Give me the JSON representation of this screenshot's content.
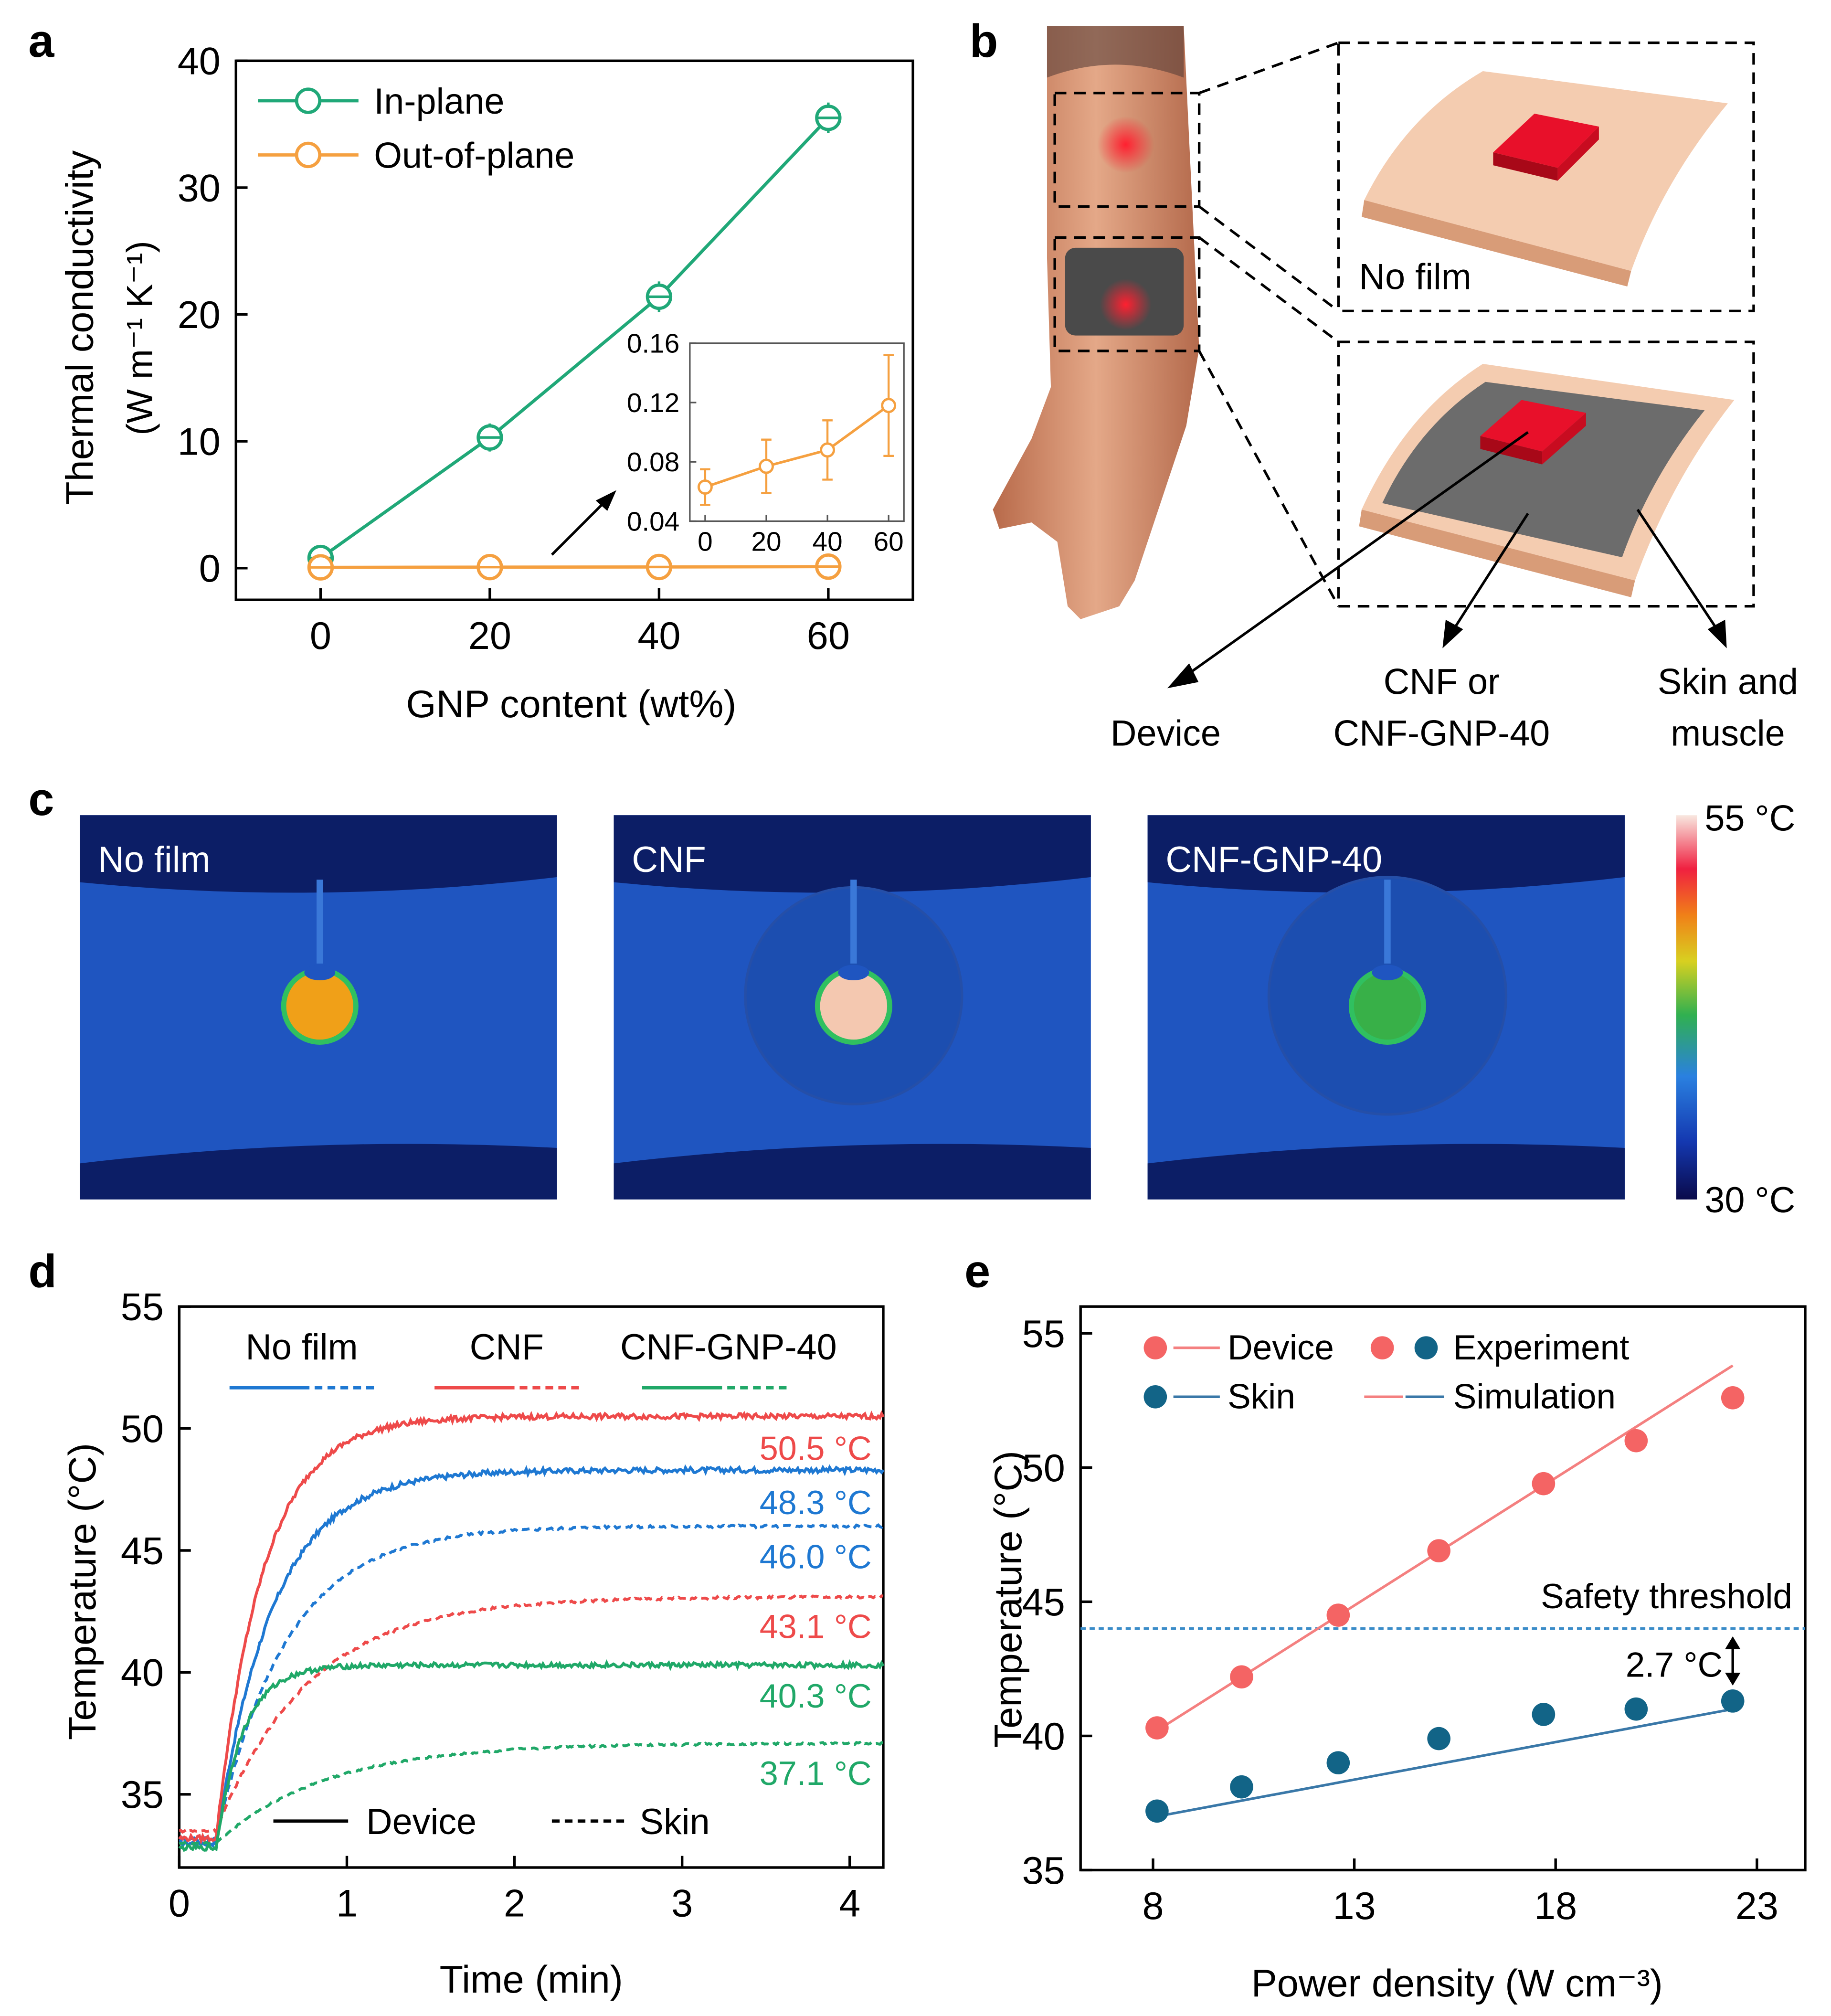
{
  "colors": {
    "in_plane": "#20a878",
    "out_of_plane": "#f5a040",
    "no_film": "#1e78d2",
    "cnf": "#ee4a4a",
    "cnf_gnp": "#20a868",
    "device_pt": "#f46464",
    "skin_pt": "#126487",
    "threshold": "#3a8cc8",
    "skin_tone_light": "#f4ccb0",
    "skin_tone_dark": "#d89c78",
    "device_red": "#e8102a",
    "film_gray": "#6c6c6c",
    "band_gray": "#4a4a4a",
    "ir_background": "#1f55c0",
    "ir_dark": "#0c1e66"
  },
  "panel_a": {
    "letter": "a",
    "ylabel_line1": "Thermal conductivity",
    "ylabel_unit": "(W m⁻¹ K⁻¹)",
    "xlabel": "GNP content (wt%)",
    "legend": [
      "In-plane",
      "Out-of-plane"
    ]
  },
  "panel_b": {
    "letter": "b",
    "label_no_film": "No film",
    "label_device": "Device",
    "label_cnf_line1": "CNF or",
    "label_cnf_line2": "CNF-GNP-40",
    "label_skin_line1": "Skin and",
    "label_skin_line2": "muscle",
    "icons": [
      "forearm-illustration",
      "skin-slab-icon",
      "device-square-icon",
      "film-layer-icon"
    ]
  },
  "panel_c": {
    "letter": "c",
    "images": [
      {
        "label": "No film",
        "hot_color": "#f0a018"
      },
      {
        "label": "CNF",
        "hot_color": "#f4c8b0"
      },
      {
        "label": "CNF-GNP-40",
        "hot_color": "#38b048"
      }
    ],
    "colorbar_max": "55 °C",
    "colorbar_min": "30 °C"
  },
  "panel_d": {
    "letter": "d",
    "xlabel": "Time (min)",
    "ylabel": "Temperature (°C)",
    "legend_top": [
      "No film",
      "CNF",
      "CNF-GNP-40"
    ],
    "legend_bottom": [
      "Device",
      "Skin"
    ],
    "end_labels": [
      "50.5 °C",
      "48.3 °C",
      "46.0 °C",
      "43.1 °C",
      "40.3 °C",
      "37.1 °C"
    ]
  },
  "panel_e": {
    "letter": "e",
    "xlabel": "Power density (W cm⁻³)",
    "ylabel": "Temperature (°C)",
    "legend": {
      "device": "Device",
      "experiment": "Experiment",
      "skin": "Skin",
      "simulation": "Simulation"
    },
    "threshold_label": "Safety threshold",
    "gap_label": "2.7 °C"
  },
  "chart_data": [
    {
      "panel": "a",
      "type": "line",
      "x": [
        0,
        20,
        40,
        60
      ],
      "xlim": [
        -10,
        70
      ],
      "ylim": [
        -2.5,
        40
      ],
      "xticks": [
        0,
        20,
        40,
        60
      ],
      "yticks": [
        0,
        10,
        20,
        30,
        40
      ],
      "series": [
        {
          "name": "In-plane",
          "values": [
            0.8,
            10.3,
            21.4,
            35.5
          ],
          "errors": [
            0.5,
            0.7,
            0.8,
            0.8
          ]
        },
        {
          "name": "Out-of-plane",
          "values": [
            0.06,
            0.08,
            0.09,
            0.12
          ],
          "errors": [
            0.5,
            0.5,
            0.5,
            0.5
          ]
        }
      ],
      "inset": {
        "x": [
          0,
          20,
          40,
          60
        ],
        "values": [
          0.063,
          0.077,
          0.088,
          0.118
        ],
        "errors": [
          0.012,
          0.018,
          0.02,
          0.034
        ],
        "xlim": [
          -5,
          65
        ],
        "ylim": [
          0.04,
          0.16
        ],
        "xticks": [
          0,
          20,
          40,
          60
        ],
        "yticks": [
          0.04,
          0.08,
          0.12,
          0.16
        ],
        "ytick_labels": [
          "0.04",
          "0.08",
          "0.12",
          "0.16"
        ]
      }
    },
    {
      "panel": "d",
      "type": "line",
      "xlim": [
        0,
        4.2
      ],
      "ylim": [
        32,
        55
      ],
      "xticks": [
        0,
        1,
        2,
        3,
        4
      ],
      "yticks": [
        35,
        40,
        45,
        50,
        55
      ],
      "series": [
        {
          "name": "No film",
          "kind": "Device",
          "baseline": 33.0,
          "plateau": 48.3,
          "tau": 0.34,
          "jitter": 0.22
        },
        {
          "name": "No film",
          "kind": "Skin",
          "baseline": 33.2,
          "plateau": 46.0,
          "tau": 0.42,
          "jitter": 0.1
        },
        {
          "name": "CNF",
          "kind": "Device",
          "baseline": 33.2,
          "plateau": 50.5,
          "tau": 0.28,
          "jitter": 0.22
        },
        {
          "name": "CNF",
          "kind": "Skin",
          "baseline": 33.5,
          "plateau": 43.1,
          "tau": 0.55,
          "jitter": 0.1
        },
        {
          "name": "CNF-GNP-40",
          "kind": "Device",
          "baseline": 32.8,
          "plateau": 40.3,
          "tau": 0.16,
          "jitter": 0.2
        },
        {
          "name": "CNF-GNP-40",
          "kind": "Skin",
          "baseline": 33.0,
          "plateau": 37.1,
          "tau": 0.65,
          "jitter": 0.08
        }
      ],
      "onset_min": 0.22
    },
    {
      "panel": "e",
      "type": "scatter",
      "xlim": [
        6.2,
        24.2
      ],
      "ylim": [
        35,
        56
      ],
      "xticks": [
        8,
        13,
        18,
        23
      ],
      "yticks": [
        35,
        40,
        45,
        50,
        55
      ],
      "x": [
        8.1,
        10.2,
        12.6,
        15.1,
        17.7,
        20.0,
        22.4
      ],
      "series": [
        {
          "name": "Device",
          "values": [
            40.3,
            42.2,
            44.5,
            46.9,
            49.4,
            51.0,
            52.6
          ],
          "sim": [
            [
              8.1,
              40.2
            ],
            [
              22.4,
              53.8
            ]
          ]
        },
        {
          "name": "Skin",
          "values": [
            37.2,
            38.1,
            39.0,
            39.9,
            40.8,
            41.0,
            41.3
          ],
          "sim": [
            [
              8.1,
              37.0
            ],
            [
              22.4,
              41.0
            ]
          ]
        }
      ],
      "threshold": 44.0
    }
  ]
}
